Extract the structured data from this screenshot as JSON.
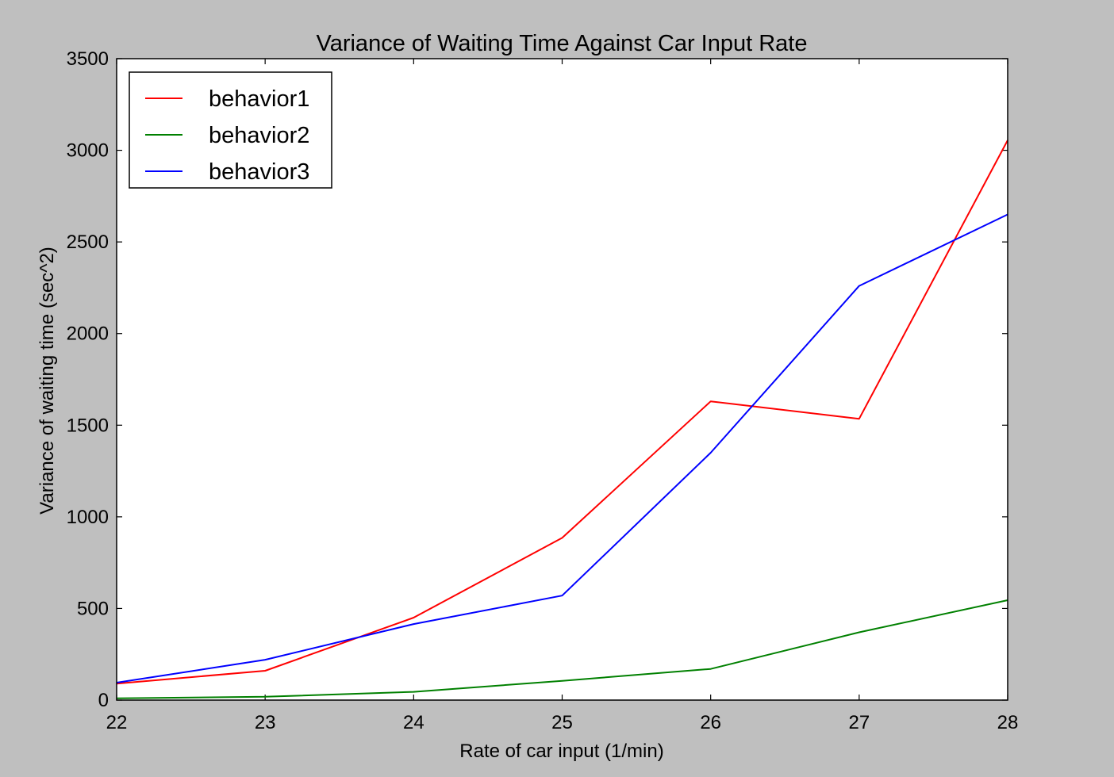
{
  "chart_data": {
    "type": "line",
    "title": "Variance of Waiting Time Against Car Input Rate",
    "xlabel": "Rate of car input (1/min)",
    "ylabel": "Variance of waiting time (sec^2)",
    "xlim": [
      22,
      28
    ],
    "ylim": [
      0,
      3500
    ],
    "x_ticks": [
      "22",
      "23",
      "24",
      "25",
      "26",
      "27",
      "28"
    ],
    "y_ticks": [
      "0",
      "500",
      "1000",
      "1500",
      "2000",
      "2500",
      "3000",
      "3500"
    ],
    "grid": false,
    "legend_position": "upper left",
    "x": [
      22,
      23,
      24,
      25,
      26,
      27,
      28
    ],
    "series": [
      {
        "name": "behavior1",
        "color": "#ff0000",
        "values": [
          90,
          160,
          450,
          885,
          1630,
          1535,
          3055
        ]
      },
      {
        "name": "behavior2",
        "color": "#008000",
        "values": [
          10,
          18,
          45,
          105,
          170,
          370,
          545
        ]
      },
      {
        "name": "behavior3",
        "color": "#0000ff",
        "values": [
          95,
          220,
          415,
          570,
          1350,
          2260,
          2650
        ]
      }
    ]
  }
}
